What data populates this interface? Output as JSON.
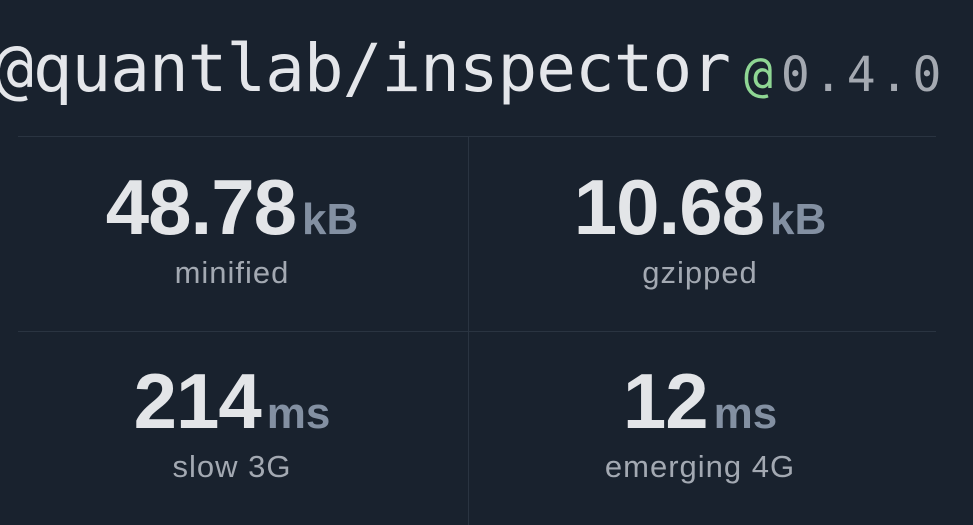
{
  "package": {
    "name": "@quantlab/inspector",
    "at": "@",
    "version": "0.4.0"
  },
  "stats": [
    {
      "value": "48.78",
      "unit": "kB",
      "label": "minified"
    },
    {
      "value": "10.68",
      "unit": "kB",
      "label": "gzipped"
    },
    {
      "value": "214",
      "unit": "ms",
      "label": "slow 3G"
    },
    {
      "value": "12",
      "unit": "ms",
      "label": "emerging 4G"
    }
  ],
  "colors": {
    "background": "#19222e",
    "accent": "#8fd694",
    "unit": "#8390a2"
  }
}
